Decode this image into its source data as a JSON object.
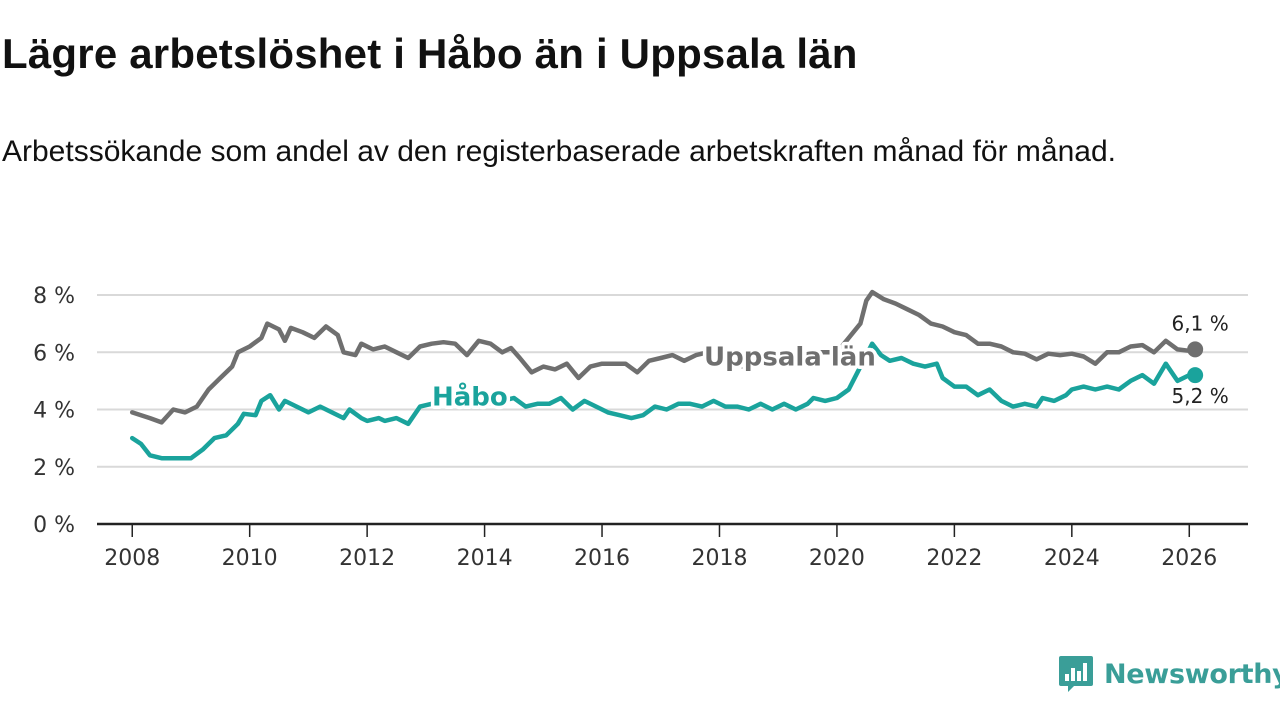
{
  "title": "Lägre arbetslöshet i Håbo än i Uppsala län",
  "subtitle": "Arbetssökande som andel av den registerbaserade arbetskraften månad för månad.",
  "brand": {
    "name": "Newsworthy",
    "icon": "newsworthy-logo-icon",
    "color": "#3a9e98"
  },
  "chart_data": {
    "type": "line",
    "title": "Lägre arbetslöshet i Håbo än i Uppsala län",
    "xlabel": "",
    "ylabel": "",
    "xlim": [
      2007.4,
      2027.0
    ],
    "ylim": [
      0,
      8
    ],
    "y_ticks": [
      0,
      2,
      4,
      6,
      8
    ],
    "y_tick_labels": [
      "0 %",
      "2 %",
      "4 %",
      "6 %",
      "8 %"
    ],
    "x_ticks": [
      2008,
      2010,
      2012,
      2014,
      2016,
      2018,
      2020,
      2022,
      2024,
      2026
    ],
    "x_tick_labels": [
      "2008",
      "2010",
      "2012",
      "2014",
      "2016",
      "2018",
      "2020",
      "2022",
      "2024",
      "2026"
    ],
    "grid": true,
    "series": [
      {
        "name": "Uppsala län",
        "color": "#6f6f6f",
        "end_label": "6,1 %",
        "points": [
          [
            2008.0,
            3.9
          ],
          [
            2008.3,
            3.7
          ],
          [
            2008.5,
            3.55
          ],
          [
            2008.7,
            4.0
          ],
          [
            2008.9,
            3.9
          ],
          [
            2009.1,
            4.1
          ],
          [
            2009.3,
            4.7
          ],
          [
            2009.5,
            5.1
          ],
          [
            2009.7,
            5.5
          ],
          [
            2009.8,
            6.0
          ],
          [
            2010.0,
            6.2
          ],
          [
            2010.2,
            6.5
          ],
          [
            2010.3,
            7.0
          ],
          [
            2010.5,
            6.8
          ],
          [
            2010.6,
            6.4
          ],
          [
            2010.7,
            6.85
          ],
          [
            2010.9,
            6.7
          ],
          [
            2011.1,
            6.5
          ],
          [
            2011.3,
            6.9
          ],
          [
            2011.5,
            6.6
          ],
          [
            2011.6,
            6.0
          ],
          [
            2011.8,
            5.9
          ],
          [
            2011.9,
            6.3
          ],
          [
            2012.1,
            6.1
          ],
          [
            2012.3,
            6.2
          ],
          [
            2012.5,
            6.0
          ],
          [
            2012.7,
            5.8
          ],
          [
            2012.9,
            6.2
          ],
          [
            2013.1,
            6.3
          ],
          [
            2013.3,
            6.35
          ],
          [
            2013.5,
            6.3
          ],
          [
            2013.7,
            5.9
          ],
          [
            2013.9,
            6.4
          ],
          [
            2014.1,
            6.3
          ],
          [
            2014.3,
            6.0
          ],
          [
            2014.45,
            6.15
          ],
          [
            2014.6,
            5.8
          ],
          [
            2014.8,
            5.3
          ],
          [
            2015.0,
            5.5
          ],
          [
            2015.2,
            5.4
          ],
          [
            2015.4,
            5.6
          ],
          [
            2015.6,
            5.1
          ],
          [
            2015.8,
            5.5
          ],
          [
            2016.0,
            5.6
          ],
          [
            2016.2,
            5.6
          ],
          [
            2016.4,
            5.6
          ],
          [
            2016.6,
            5.3
          ],
          [
            2016.8,
            5.7
          ],
          [
            2017.0,
            5.8
          ],
          [
            2017.2,
            5.9
          ],
          [
            2017.4,
            5.7
          ],
          [
            2017.6,
            5.9
          ],
          [
            2017.8,
            6.0
          ],
          [
            2018.0,
            5.9
          ],
          [
            2018.2,
            5.8
          ],
          [
            2018.4,
            5.5
          ],
          [
            2018.6,
            5.7
          ],
          [
            2018.8,
            5.85
          ],
          [
            2019.0,
            5.9
          ],
          [
            2019.2,
            5.85
          ],
          [
            2019.4,
            5.9
          ],
          [
            2019.6,
            6.0
          ],
          [
            2019.8,
            6.0
          ],
          [
            2020.0,
            6.0
          ],
          [
            2020.2,
            6.5
          ],
          [
            2020.4,
            7.0
          ],
          [
            2020.5,
            7.8
          ],
          [
            2020.6,
            8.1
          ],
          [
            2020.8,
            7.85
          ],
          [
            2021.0,
            7.7
          ],
          [
            2021.2,
            7.5
          ],
          [
            2021.4,
            7.3
          ],
          [
            2021.6,
            7.0
          ],
          [
            2021.8,
            6.9
          ],
          [
            2022.0,
            6.7
          ],
          [
            2022.2,
            6.6
          ],
          [
            2022.4,
            6.3
          ],
          [
            2022.6,
            6.3
          ],
          [
            2022.8,
            6.2
          ],
          [
            2023.0,
            6.0
          ],
          [
            2023.2,
            5.95
          ],
          [
            2023.4,
            5.75
          ],
          [
            2023.6,
            5.95
          ],
          [
            2023.8,
            5.9
          ],
          [
            2024.0,
            5.95
          ],
          [
            2024.2,
            5.85
          ],
          [
            2024.4,
            5.6
          ],
          [
            2024.6,
            6.0
          ],
          [
            2024.8,
            6.0
          ],
          [
            2025.0,
            6.2
          ],
          [
            2025.2,
            6.25
          ],
          [
            2025.4,
            6.0
          ],
          [
            2025.6,
            6.4
          ],
          [
            2025.8,
            6.1
          ],
          [
            2026.0,
            6.05
          ],
          [
            2026.1,
            6.1
          ]
        ]
      },
      {
        "name": "Håbo",
        "color": "#1aa39c",
        "end_label": "5,2 %",
        "points": [
          [
            2008.0,
            3.0
          ],
          [
            2008.15,
            2.8
          ],
          [
            2008.3,
            2.4
          ],
          [
            2008.5,
            2.3
          ],
          [
            2008.7,
            2.3
          ],
          [
            2008.9,
            2.3
          ],
          [
            2009.0,
            2.3
          ],
          [
            2009.2,
            2.6
          ],
          [
            2009.4,
            3.0
          ],
          [
            2009.6,
            3.1
          ],
          [
            2009.8,
            3.5
          ],
          [
            2009.9,
            3.85
          ],
          [
            2010.1,
            3.8
          ],
          [
            2010.2,
            4.3
          ],
          [
            2010.35,
            4.5
          ],
          [
            2010.5,
            4.0
          ],
          [
            2010.6,
            4.3
          ],
          [
            2010.8,
            4.1
          ],
          [
            2011.0,
            3.9
          ],
          [
            2011.2,
            4.1
          ],
          [
            2011.4,
            3.9
          ],
          [
            2011.6,
            3.7
          ],
          [
            2011.7,
            4.0
          ],
          [
            2011.9,
            3.7
          ],
          [
            2012.0,
            3.6
          ],
          [
            2012.2,
            3.7
          ],
          [
            2012.3,
            3.6
          ],
          [
            2012.5,
            3.7
          ],
          [
            2012.7,
            3.5
          ],
          [
            2012.9,
            4.1
          ],
          [
            2013.1,
            4.2
          ],
          [
            2013.3,
            4.5
          ],
          [
            2013.5,
            4.6
          ],
          [
            2013.7,
            4.4
          ],
          [
            2013.9,
            4.3
          ],
          [
            2014.1,
            4.2
          ],
          [
            2014.3,
            4.3
          ],
          [
            2014.5,
            4.4
          ],
          [
            2014.7,
            4.1
          ],
          [
            2014.9,
            4.2
          ],
          [
            2015.1,
            4.2
          ],
          [
            2015.3,
            4.4
          ],
          [
            2015.5,
            4.0
          ],
          [
            2015.7,
            4.3
          ],
          [
            2015.9,
            4.1
          ],
          [
            2016.1,
            3.9
          ],
          [
            2016.3,
            3.8
          ],
          [
            2016.5,
            3.7
          ],
          [
            2016.7,
            3.8
          ],
          [
            2016.9,
            4.1
          ],
          [
            2017.1,
            4.0
          ],
          [
            2017.3,
            4.2
          ],
          [
            2017.5,
            4.2
          ],
          [
            2017.7,
            4.1
          ],
          [
            2017.9,
            4.3
          ],
          [
            2018.1,
            4.1
          ],
          [
            2018.3,
            4.1
          ],
          [
            2018.5,
            4.0
          ],
          [
            2018.7,
            4.2
          ],
          [
            2018.9,
            4.0
          ],
          [
            2019.1,
            4.2
          ],
          [
            2019.3,
            4.0
          ],
          [
            2019.5,
            4.2
          ],
          [
            2019.6,
            4.4
          ],
          [
            2019.8,
            4.3
          ],
          [
            2020.0,
            4.4
          ],
          [
            2020.2,
            4.7
          ],
          [
            2020.35,
            5.3
          ],
          [
            2020.5,
            5.9
          ],
          [
            2020.6,
            6.3
          ],
          [
            2020.75,
            5.9
          ],
          [
            2020.9,
            5.7
          ],
          [
            2021.1,
            5.8
          ],
          [
            2021.3,
            5.6
          ],
          [
            2021.5,
            5.5
          ],
          [
            2021.7,
            5.6
          ],
          [
            2021.8,
            5.1
          ],
          [
            2022.0,
            4.8
          ],
          [
            2022.2,
            4.8
          ],
          [
            2022.4,
            4.5
          ],
          [
            2022.6,
            4.7
          ],
          [
            2022.8,
            4.3
          ],
          [
            2023.0,
            4.1
          ],
          [
            2023.2,
            4.2
          ],
          [
            2023.4,
            4.1
          ],
          [
            2023.5,
            4.4
          ],
          [
            2023.7,
            4.3
          ],
          [
            2023.9,
            4.5
          ],
          [
            2024.0,
            4.7
          ],
          [
            2024.2,
            4.8
          ],
          [
            2024.4,
            4.7
          ],
          [
            2024.6,
            4.8
          ],
          [
            2024.8,
            4.7
          ],
          [
            2025.0,
            5.0
          ],
          [
            2025.2,
            5.2
          ],
          [
            2025.4,
            4.9
          ],
          [
            2025.6,
            5.6
          ],
          [
            2025.8,
            5.0
          ],
          [
            2026.0,
            5.2
          ],
          [
            2026.1,
            5.2
          ]
        ]
      }
    ]
  }
}
